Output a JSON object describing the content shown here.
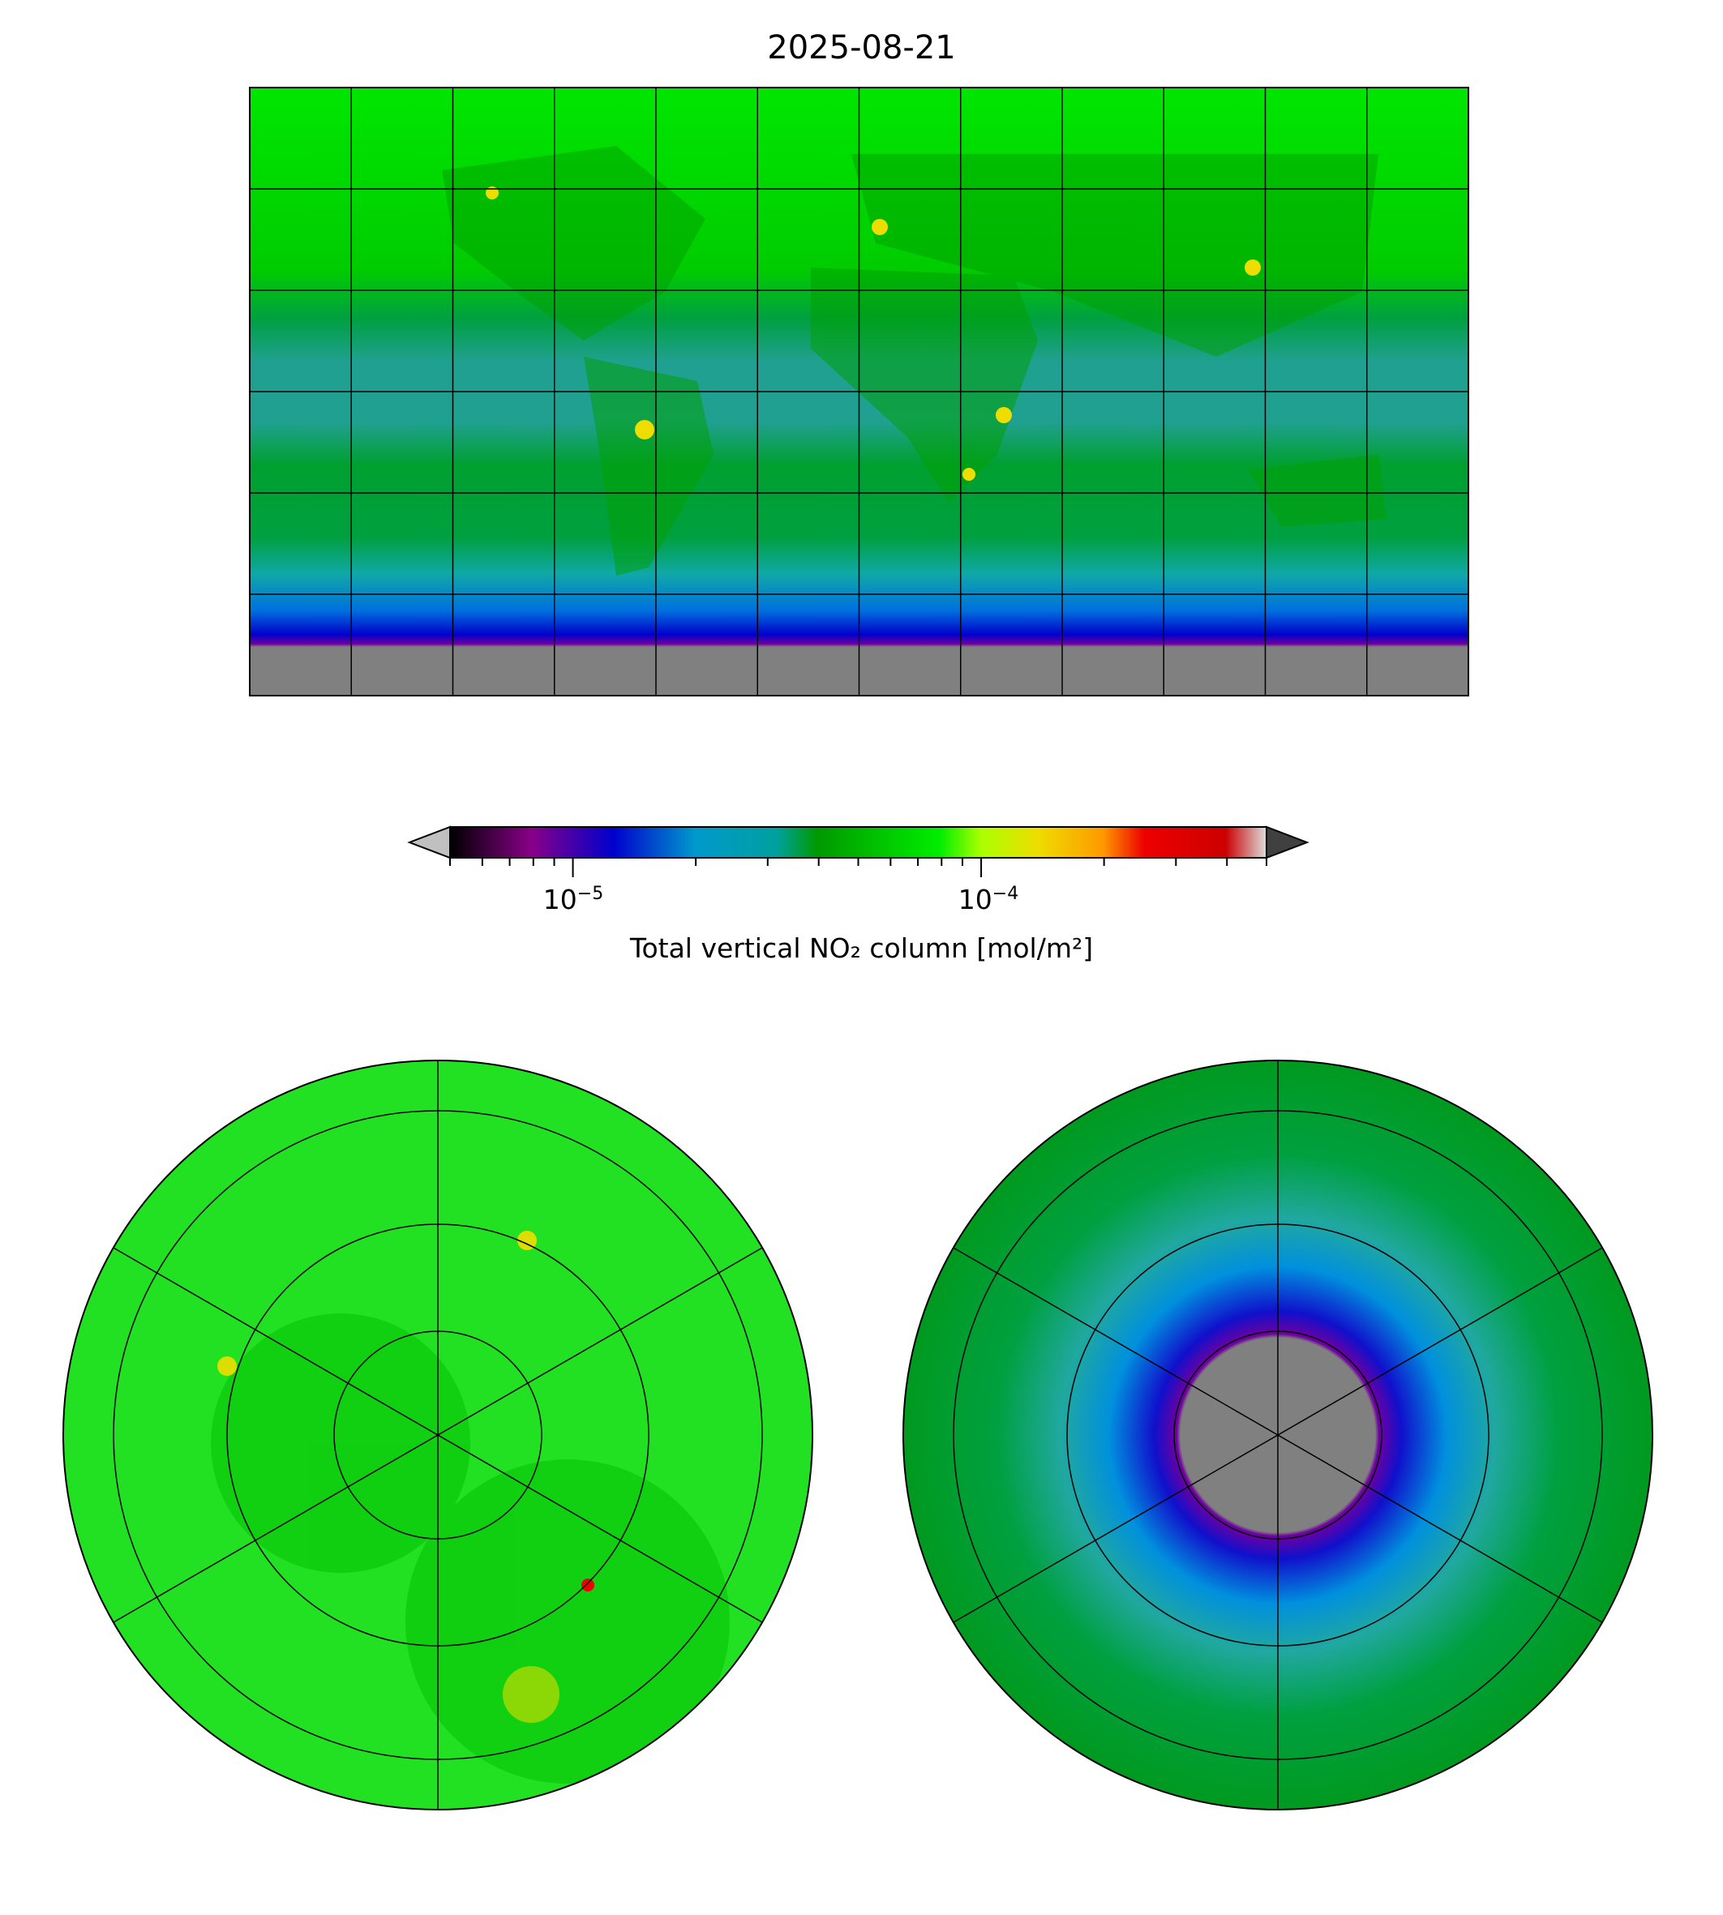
{
  "title": "2025-08-21",
  "colorbar": {
    "label": "Total vertical NO₂ column [mol/m²]",
    "scale": "log",
    "range": [
      5e-06,
      0.0005
    ],
    "extend": "both",
    "ticks": [
      {
        "value": 1e-05,
        "base": "10",
        "exp": "−5"
      },
      {
        "value": 0.0001,
        "base": "10",
        "exp": "−4"
      }
    ],
    "colormap_stops": [
      "#000000",
      "#880088",
      "#0000cc",
      "#0099cc",
      "#00a0a0",
      "#009900",
      "#00ee00",
      "#aaff00",
      "#eedd00",
      "#ff9900",
      "#ee0000",
      "#cc0000",
      "#dddddd"
    ],
    "under_color": "#c0c0c0",
    "over_color": "#404040",
    "nodata_color": "#808080"
  },
  "chart_data": {
    "type": "heatmap",
    "title": "2025-08-21",
    "variable": "Total vertical NO₂ column [mol/m²]",
    "panels": [
      "global equirectangular",
      "north polar stereographic",
      "south polar stereographic"
    ],
    "colorbar_range": [
      5e-06,
      0.0005
    ],
    "colorbar_ticks": [
      1e-05,
      0.0001
    ],
    "gridlines": {
      "lon_step_deg": 30,
      "lat_step_deg": 30
    },
    "grid": true
  }
}
